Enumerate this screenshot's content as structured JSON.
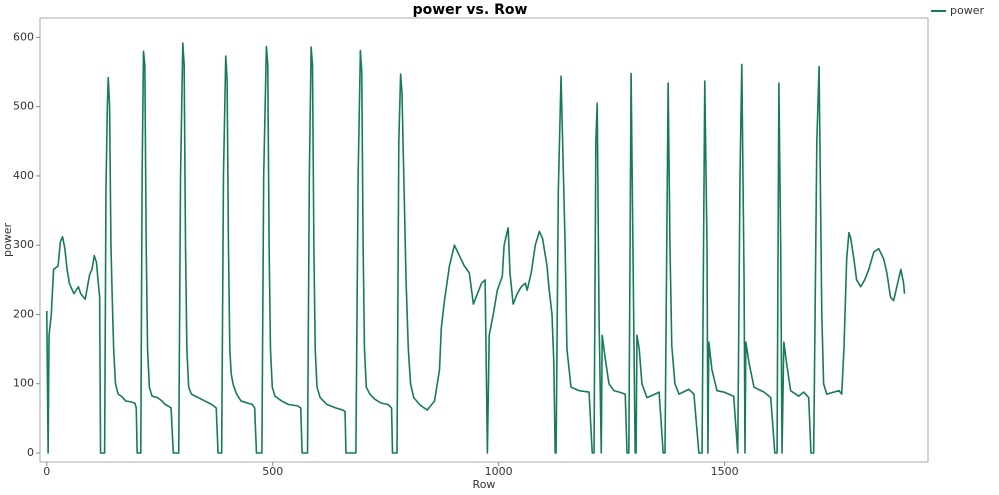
{
  "chart_data": {
    "type": "line",
    "title": "power vs. Row",
    "x_label": "Row",
    "y_label": "power",
    "x": [
      0,
      3,
      5,
      10,
      15,
      25,
      30,
      35,
      40,
      45,
      50,
      60,
      70,
      75,
      85,
      90,
      95,
      100,
      105,
      110,
      114,
      117,
      119,
      128,
      131,
      134,
      136,
      139,
      142,
      145,
      148,
      152,
      158,
      165,
      175,
      185,
      195,
      198,
      200,
      208,
      211,
      214,
      217,
      220,
      223,
      227,
      233,
      245,
      255,
      262,
      268,
      275,
      280,
      292,
      296,
      301,
      304,
      307,
      310,
      314,
      320,
      335,
      350,
      365,
      375,
      379,
      387,
      391,
      396,
      399,
      402,
      405,
      408,
      412,
      420,
      430,
      445,
      455,
      460,
      464,
      476,
      480,
      486,
      489,
      492,
      495,
      499,
      505,
      520,
      535,
      555,
      562,
      565,
      577,
      581,
      585,
      588,
      591,
      594,
      598,
      605,
      620,
      640,
      655,
      660,
      662,
      684,
      689,
      694,
      697,
      700,
      703,
      707,
      715,
      725,
      740,
      755,
      763,
      765,
      775,
      779,
      783,
      786,
      790,
      795,
      800,
      805,
      812,
      825,
      835,
      842,
      858,
      869,
      873,
      880,
      891,
      902,
      913,
      924,
      935,
      944,
      953,
      962,
      970,
      975,
      979,
      988,
      997,
      1008,
      1012,
      1019,
      1021,
      1025,
      1032,
      1041,
      1050,
      1059,
      1063,
      1072,
      1081,
      1090,
      1097,
      1107,
      1111,
      1118,
      1122,
      1125,
      1127,
      1132,
      1138,
      1147,
      1151,
      1160,
      1178,
      1200,
      1207,
      1211,
      1215,
      1218,
      1222,
      1227,
      1229,
      1235,
      1244,
      1255,
      1266,
      1280,
      1284,
      1288,
      1293,
      1297,
      1302,
      1304,
      1306,
      1311,
      1317,
      1328,
      1346,
      1355,
      1364,
      1368,
      1375,
      1379,
      1383,
      1390,
      1399,
      1421,
      1432,
      1443,
      1450,
      1456,
      1461,
      1463,
      1465,
      1472,
      1483,
      1498,
      1520,
      1529,
      1534,
      1538,
      1543,
      1545,
      1547,
      1554,
      1565,
      1587,
      1602,
      1611,
      1616,
      1620,
      1624,
      1627,
      1631,
      1637,
      1646,
      1664,
      1675,
      1686,
      1691,
      1697,
      1704,
      1709,
      1715,
      1719,
      1726,
      1753,
      1759,
      1764,
      1770,
      1775,
      1779,
      1786,
      1792,
      1801,
      1810,
      1819,
      1830,
      1841,
      1852,
      1859,
      1867,
      1874,
      1881,
      1890,
      1896,
      1898
    ],
    "series": [
      {
        "name": "power",
        "color": "#167a5b",
        "values": [
          205,
          0,
          170,
          200,
          265,
          270,
          305,
          312,
          295,
          265,
          245,
          230,
          240,
          230,
          222,
          240,
          258,
          265,
          285,
          275,
          245,
          225,
          0,
          0,
          380,
          500,
          542,
          500,
          300,
          220,
          150,
          100,
          85,
          82,
          75,
          74,
          72,
          65,
          0,
          0,
          400,
          580,
          560,
          300,
          150,
          95,
          82,
          80,
          75,
          70,
          68,
          65,
          0,
          0,
          400,
          592,
          560,
          300,
          150,
          95,
          85,
          80,
          75,
          70,
          65,
          0,
          0,
          400,
          573,
          540,
          300,
          150,
          115,
          100,
          85,
          75,
          72,
          70,
          65,
          0,
          0,
          400,
          587,
          560,
          300,
          150,
          95,
          82,
          75,
          70,
          68,
          65,
          0,
          0,
          400,
          586,
          560,
          300,
          150,
          95,
          80,
          70,
          65,
          62,
          60,
          0,
          0,
          400,
          581,
          550,
          300,
          150,
          95,
          85,
          78,
          72,
          70,
          65,
          0,
          0,
          450,
          547,
          520,
          400,
          250,
          150,
          100,
          80,
          70,
          65,
          62,
          75,
          120,
          180,
          220,
          270,
          300,
          285,
          270,
          260,
          215,
          230,
          245,
          250,
          0,
          170,
          200,
          235,
          255,
          300,
          320,
          325,
          260,
          215,
          230,
          240,
          245,
          235,
          260,
          300,
          320,
          310,
          270,
          240,
          200,
          130,
          0,
          0,
          380,
          544,
          300,
          150,
          95,
          90,
          88,
          0,
          0,
          450,
          505,
          200,
          0,
          170,
          140,
          100,
          90,
          88,
          85,
          0,
          0,
          548,
          300,
          0,
          0,
          170,
          150,
          100,
          80,
          85,
          88,
          0,
          0,
          534,
          300,
          155,
          100,
          85,
          92,
          85,
          0,
          0,
          537,
          300,
          0,
          160,
          120,
          90,
          88,
          82,
          0,
          400,
          561,
          250,
          0,
          160,
          130,
          95,
          88,
          80,
          0,
          0,
          534,
          300,
          0,
          160,
          130,
          90,
          82,
          88,
          80,
          0,
          0,
          450,
          558,
          200,
          100,
          85,
          90,
          85,
          150,
          280,
          318,
          310,
          280,
          250,
          240,
          250,
          265,
          290,
          295,
          280,
          260,
          225,
          220,
          240,
          265,
          245,
          230
        ]
      }
    ],
    "xlim": [
      -15,
      1950
    ],
    "ylim": [
      -13,
      628
    ],
    "xticks": [
      0,
      500,
      1000,
      1500
    ],
    "yticks": [
      0,
      100,
      200,
      300,
      400,
      500,
      600
    ]
  }
}
